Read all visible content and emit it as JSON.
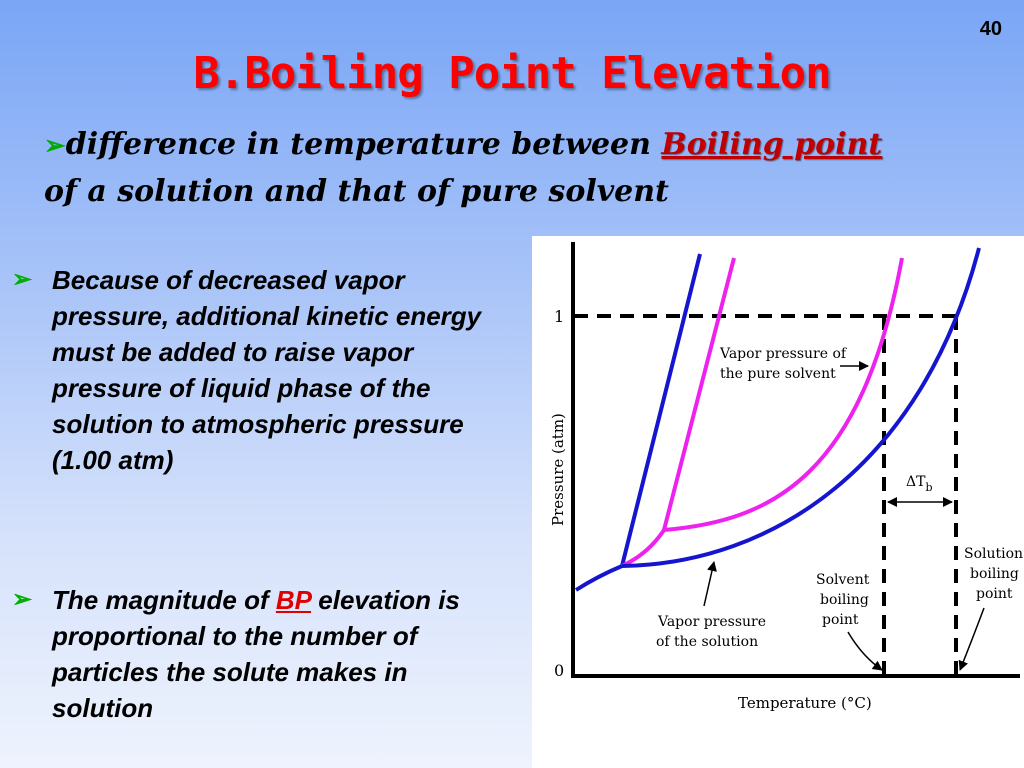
{
  "slide": {
    "number": "40",
    "title": "B.Boiling Point Elevation"
  },
  "definition": {
    "arrow": "➢",
    "text_before": "difference in temperature between ",
    "emphasis": "Boiling point",
    "text_after": "of a solution and that of pure solvent"
  },
  "bullets": [
    {
      "arrow": "➢",
      "text": "Because of decreased vapor pressure, additional kinetic energy must be added to raise vapor pressure of liquid phase of the solution to atmospheric pressure (1.00 atm)"
    },
    {
      "arrow": "➢",
      "text_before": "The magnitude of ",
      "emphasis": "BP",
      "text_after": " elevation is proportional to the number of particles the solute makes in solution"
    }
  ],
  "diagram": {
    "y_axis_label": "Pressure  (atm)",
    "x_axis_label": "Temperature (°C)",
    "y_tick_top": "1",
    "y_tick_bottom": "0",
    "label_pure_solvent_line1": "Vapor pressure of",
    "label_pure_solvent_line2": "the pure solvent",
    "label_solution_line1": "Vapor pressure",
    "label_solution_line2": "of the solution",
    "label_solvent_bp_line1": "Solvent",
    "label_solvent_bp_line2": "boiling",
    "label_solvent_bp_line3": "point",
    "label_solution_bp_line1": "Solution",
    "label_solution_bp_line2": "boiling",
    "label_solution_bp_line3": "point",
    "delta_label": "ΔT",
    "delta_sub": "b",
    "colors": {
      "solution_curve": "#1515d0",
      "solvent_curve": "#ee22ee",
      "axes": "#000000"
    }
  }
}
